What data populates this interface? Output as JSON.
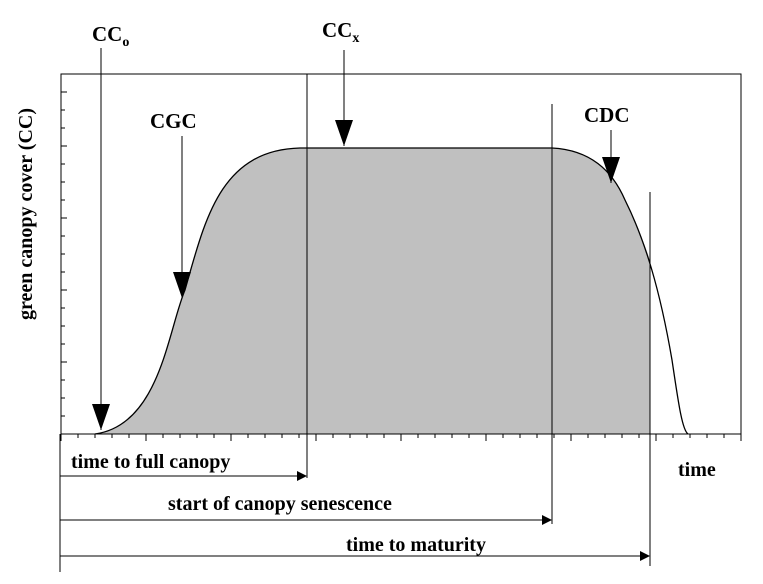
{
  "diagram": {
    "ylabel": "green canopy cover (CC)",
    "time_label": "time",
    "labels": {
      "cco_main": "CC",
      "cco_sub": "o",
      "ccx_main": "CC",
      "ccx_sub": "x",
      "cgc": "CGC",
      "cdc": "CDC"
    },
    "arrows": {
      "full_canopy": "time to full canopy",
      "senescence": "start of canopy senescence",
      "maturity": "time to maturity"
    },
    "colors": {
      "fill": "#c0c0c0",
      "line": "#000000"
    }
  }
}
